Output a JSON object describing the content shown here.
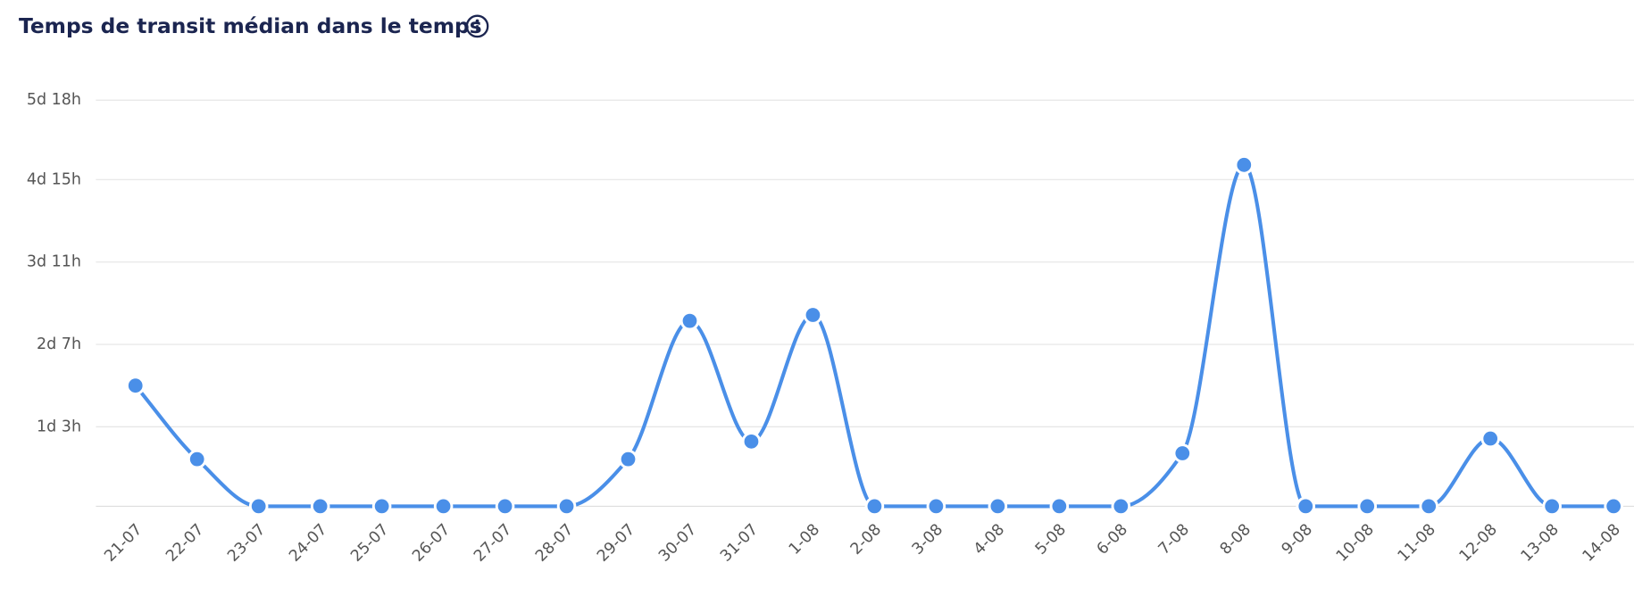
{
  "chart_data": {
    "type": "line",
    "title": "Temps de transit médian dans le temps",
    "categories": [
      "21-07",
      "22-07",
      "23-07",
      "24-07",
      "25-07",
      "26-07",
      "27-07",
      "28-07",
      "29-07",
      "30-07",
      "31-07",
      "1-08",
      "2-08",
      "3-08",
      "4-08",
      "5-08",
      "6-08",
      "7-08",
      "8-08",
      "9-08",
      "10-08",
      "11-08",
      "12-08",
      "13-08",
      "14-08"
    ],
    "series": [
      {
        "name": "Temps de transit médian",
        "color": "#4a8fe8",
        "values": [
          41,
          16,
          0,
          0,
          0,
          0,
          0,
          0,
          16,
          63,
          22,
          65,
          0,
          0,
          0,
          0,
          0,
          18,
          116,
          0,
          0,
          0,
          23,
          0,
          0
        ]
      }
    ],
    "ylim": [
      0,
      138
    ],
    "yticks": [
      {
        "value": 27,
        "label": "1d 3h"
      },
      {
        "value": 55,
        "label": "2d 7h"
      },
      {
        "value": 83,
        "label": "3d 11h"
      },
      {
        "value": 111,
        "label": "4d 15h"
      },
      {
        "value": 138,
        "label": "5d 18h"
      }
    ],
    "grid": true
  }
}
